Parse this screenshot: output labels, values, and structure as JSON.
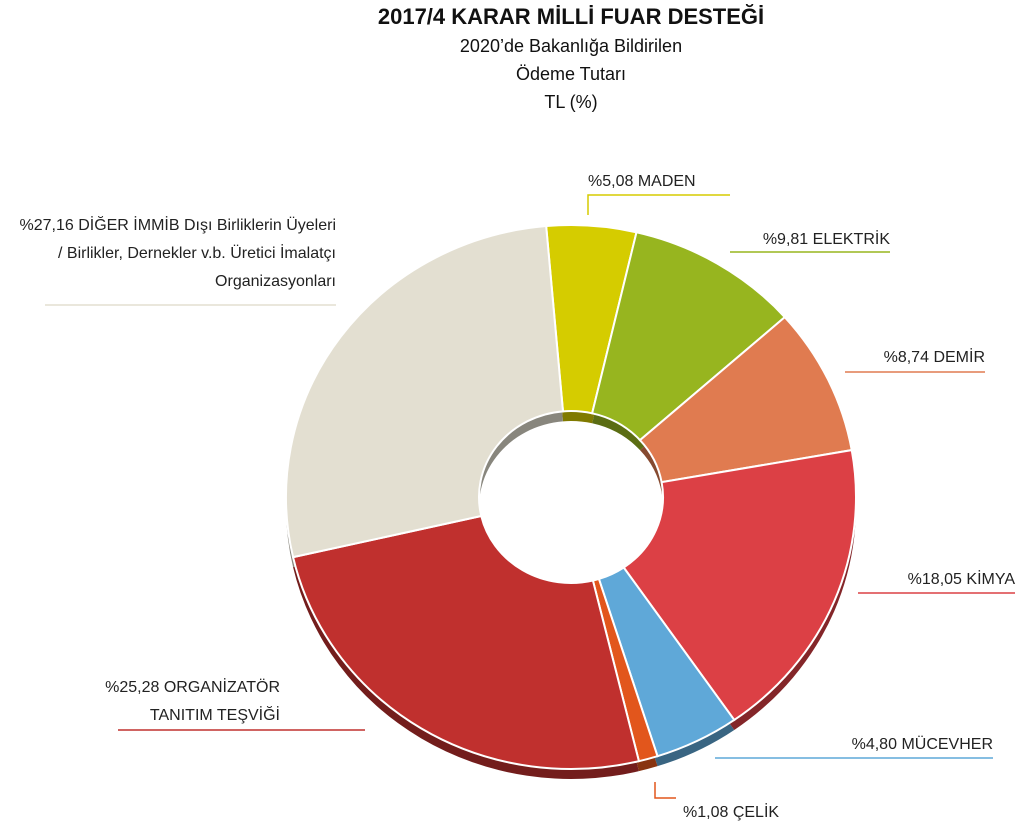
{
  "chart_data": {
    "type": "donut",
    "title": "2017/4 KARAR MİLLİ FUAR DESTEĞİ",
    "subtitle": [
      "2020’de Bakanlığa Bildirilen",
      "Ödeme Tutarı",
      "TL (%)"
    ],
    "categories": [
      "MADEN",
      "ELEKTRİK",
      "DEMİR",
      "KİMYA",
      "MÜCEVHER",
      "ÇELİK",
      "ORGANİZATÖR TANITIM TEŞVİĞİ",
      "DİĞER İMMİB Dışı Birliklerin Üyeleri / Birlikler, Dernekler v.b. Üretici İmalatçı Organizasyonları"
    ],
    "values": [
      5.08,
      9.81,
      8.74,
      18.05,
      4.8,
      1.08,
      25.28,
      27.16
    ],
    "value_labels": [
      "%5,08",
      "%9,81",
      "%8,74",
      "%18,05",
      "%4,80",
      "%1,08",
      "%25,28",
      "%27,16"
    ],
    "colors": [
      "#d5cc00",
      "#97b51f",
      "#e07b50",
      "#dc4045",
      "#5fa8d8",
      "#e2561c",
      "#c0302e",
      "#e3dfd1"
    ]
  }
}
